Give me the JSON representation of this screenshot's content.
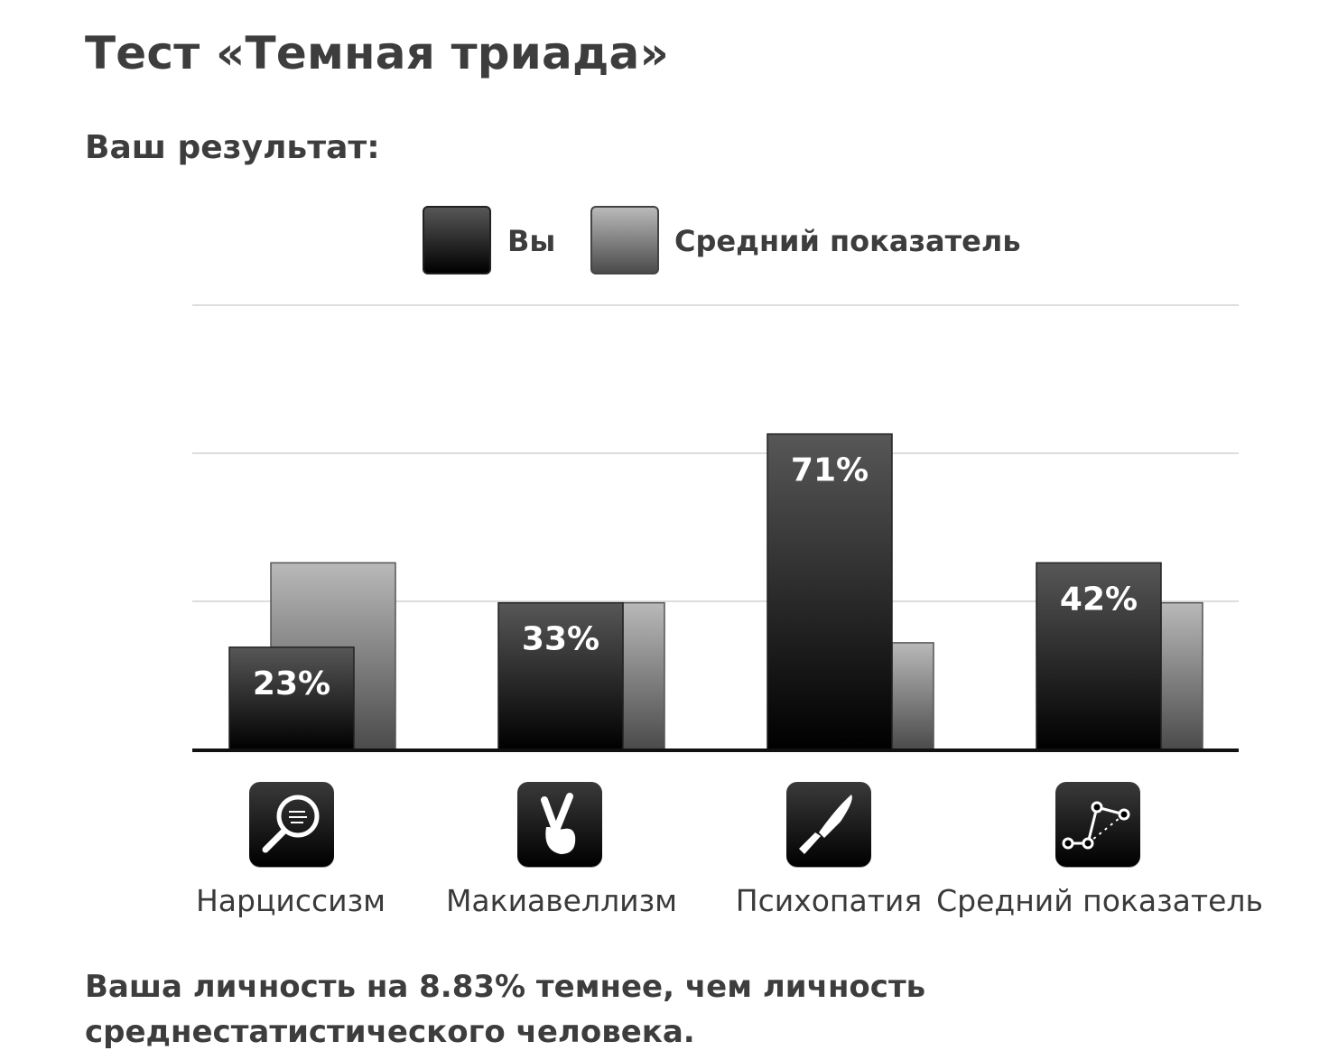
{
  "page": {
    "title": "Тест «Темная триада»",
    "subtitle": "Ваш результат:",
    "conclusion": "Ваша личность на 8.83% темнее, чем личность среднестатистического человека."
  },
  "legend": {
    "you": "Вы",
    "average": "Средний показатель"
  },
  "colors": {
    "you_top": "#575757",
    "you_bottom": "#000000",
    "avg_top": "#b9b9b9",
    "avg_bottom": "#4b4b4b",
    "grid": "#dddddd",
    "axis": "#111111"
  },
  "chart_data": {
    "type": "bar",
    "categories": [
      "Нарциссизм",
      "Макиавеллизм",
      "Психопатия",
      "Средний показатель"
    ],
    "category_icons": [
      "magnifying-glass-icon",
      "crossed-fingers-icon",
      "knife-icon",
      "line-graph-icon"
    ],
    "series": [
      {
        "name": "Вы",
        "values": [
          23,
          33,
          71,
          42
        ],
        "labels": [
          "23%",
          "33%",
          "71%",
          "42%"
        ]
      },
      {
        "name": "Средний показатель",
        "values": [
          42,
          33,
          24,
          33
        ]
      }
    ],
    "ylim": [
      0,
      100
    ],
    "grid": true,
    "legend_position": "top"
  }
}
